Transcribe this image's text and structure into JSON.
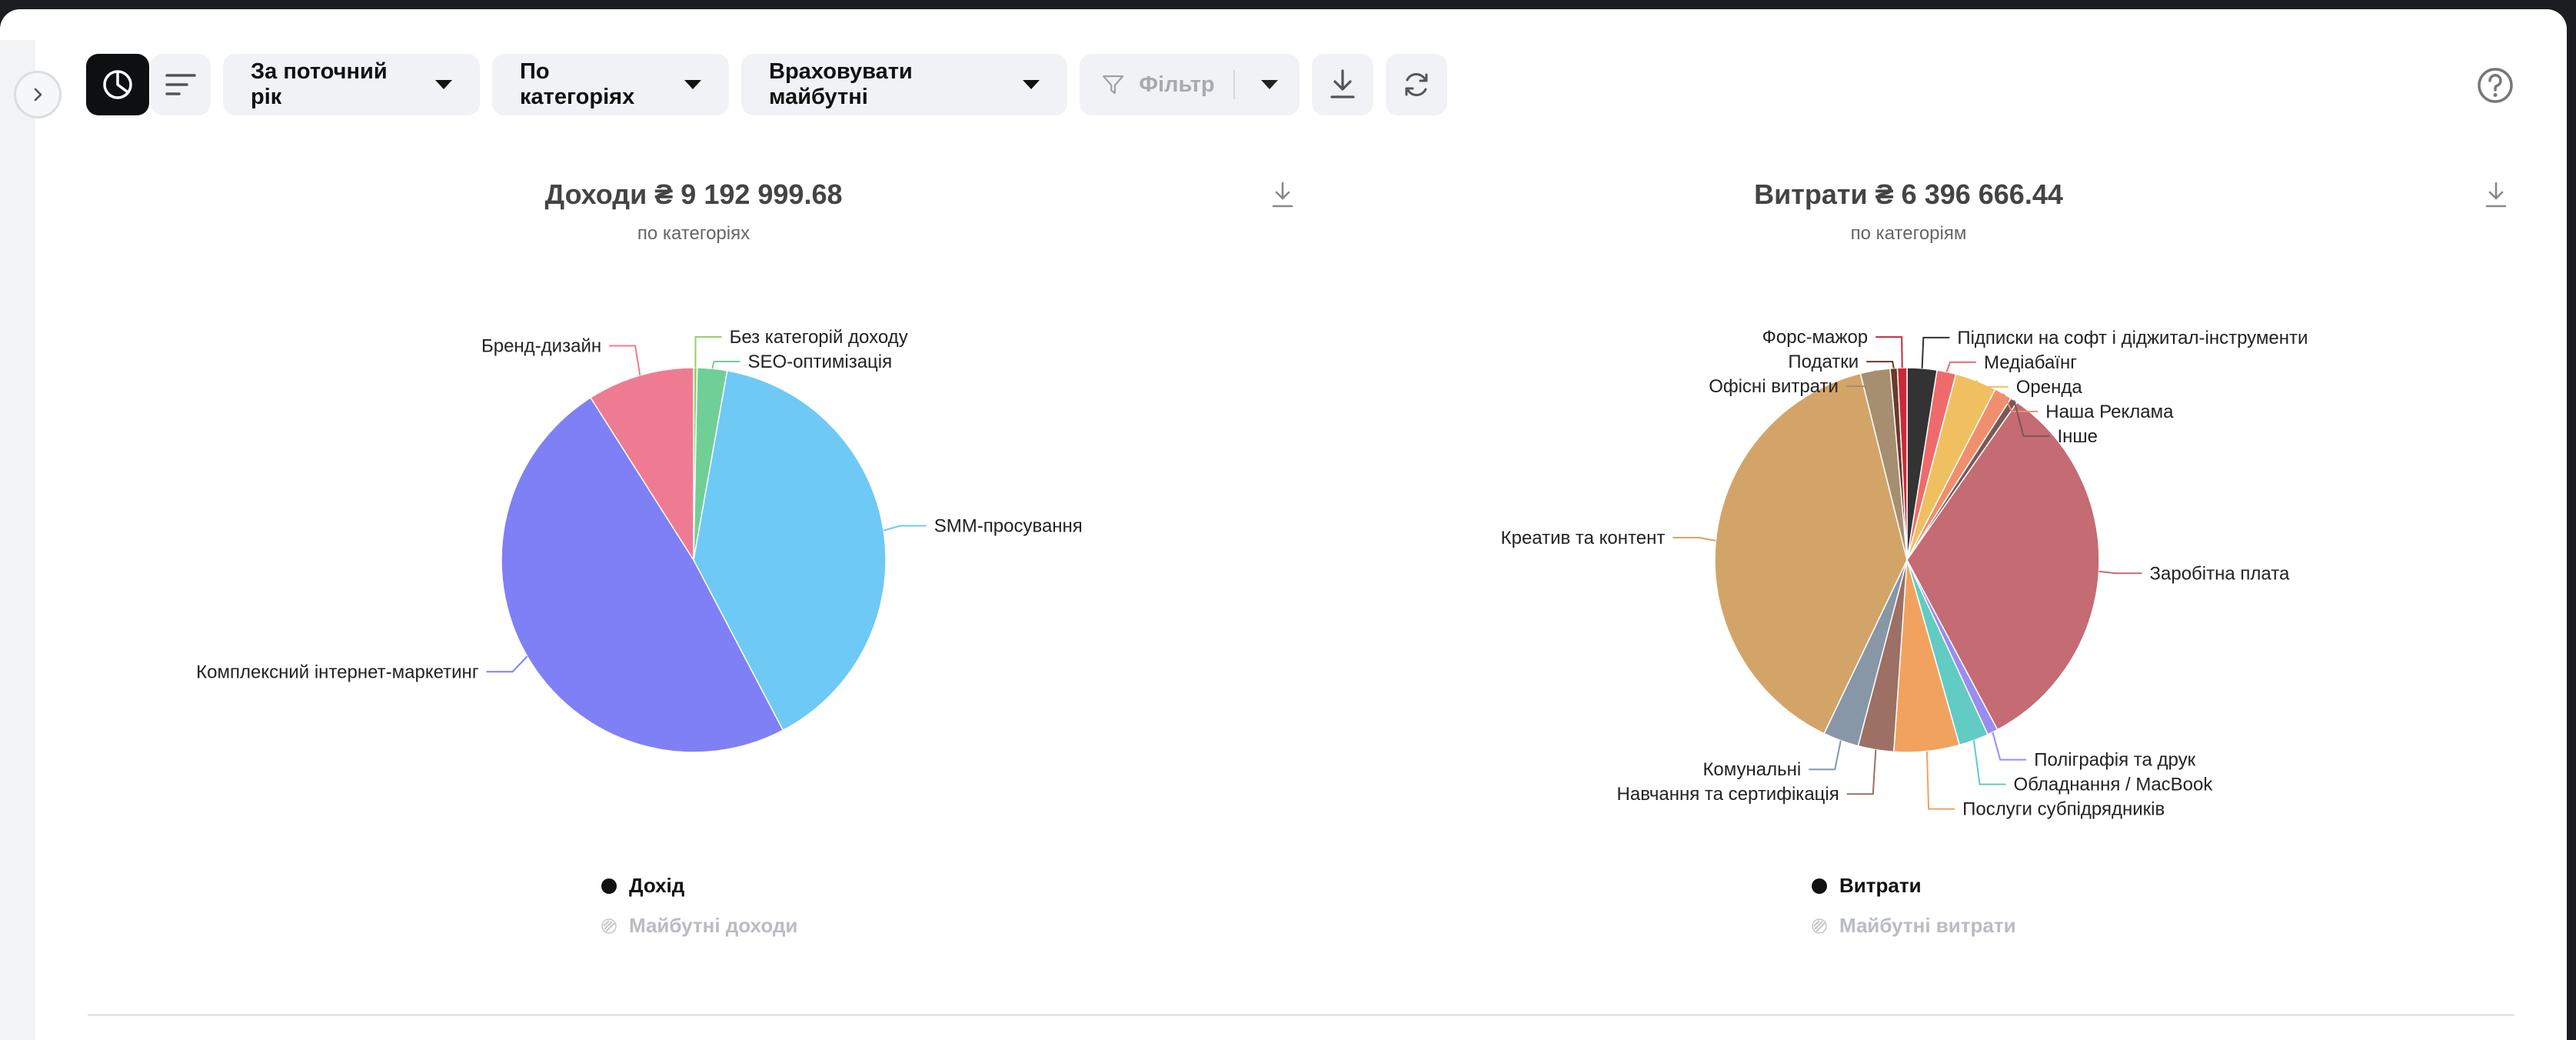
{
  "toolbar": {
    "period": "За поточний рік",
    "grouping": "По категоріях",
    "future": "Враховувати майбутні",
    "filter": "Фільтр",
    "icons": [
      "pie-chart-icon",
      "list-icon",
      "filter-icon",
      "download-icon",
      "refresh-icon",
      "help-icon",
      "chevron-right-icon"
    ]
  },
  "income": {
    "title": "Доходи ₴ 9 192 999.68",
    "subtitle": "по категоріях",
    "legend": {
      "actual": "Дохід",
      "future": "Майбутні доходи"
    }
  },
  "expenses": {
    "title": "Витрати ₴ 6 396 666.44",
    "subtitle": "по категоріям",
    "legend": {
      "actual": "Витрати",
      "future": "Майбутні витрати"
    }
  },
  "chart_data": [
    {
      "type": "pie",
      "slices": [
        {
          "label": "Без категорій доходу",
          "value": 0.3,
          "color": "#8fd16a"
        },
        {
          "label": "SEO-оптимізація",
          "value": 2.5,
          "color": "#6fcf97"
        },
        {
          "label": "SMM-просування",
          "value": 39.5,
          "color": "#6ec9f5"
        },
        {
          "label": "Комплексний інтернет-маркетинг",
          "value": 48.7,
          "color": "#7f80f5"
        },
        {
          "label": "Бренд-дизайн",
          "value": 9.0,
          "color": "#ef7b92"
        }
      ]
    },
    {
      "type": "pie",
      "slices": [
        {
          "label": "Підписки на софт і діджитал-інструменти",
          "value": 2.5,
          "color": "#333333"
        },
        {
          "label": "Медіабаїнг",
          "value": 1.6,
          "color": "#ef6b6b"
        },
        {
          "label": "Оренда",
          "value": 3.5,
          "color": "#f0c060"
        },
        {
          "label": "Наша Реклама",
          "value": 1.5,
          "color": "#f08f6e"
        },
        {
          "label": "Інше",
          "value": 0.6,
          "color": "#7a5858"
        },
        {
          "label": "Заробітна плата",
          "value": 32.5,
          "color": "#c46b73"
        },
        {
          "label": "Поліграфія та друк",
          "value": 0.9,
          "color": "#9b8cf0"
        },
        {
          "label": "Обладнання / MacBook",
          "value": 2.5,
          "color": "#62cbc3"
        },
        {
          "label": "Послуги субпідрядників",
          "value": 5.5,
          "color": "#f2a25f"
        },
        {
          "label": "Навчання та сертифікація",
          "value": 3.0,
          "color": "#9c7064"
        },
        {
          "label": "Комунальні",
          "value": 3.0,
          "color": "#8797a5"
        },
        {
          "label": "Креатив та контент",
          "value": 39.0,
          "color": "#d3a468"
        },
        {
          "label": "Офісні витрати",
          "value": 2.5,
          "color": "#a68e70"
        },
        {
          "label": "Податки",
          "value": 0.6,
          "color": "#6b3a2a"
        },
        {
          "label": "Форс-мажор",
          "value": 0.8,
          "color": "#cc2936"
        }
      ]
    }
  ]
}
